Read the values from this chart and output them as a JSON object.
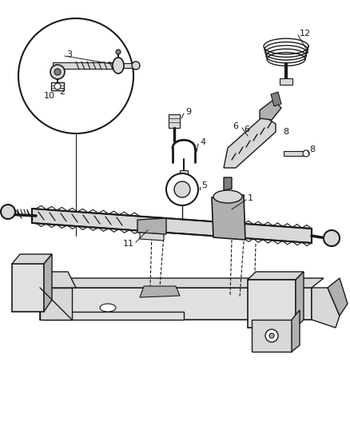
{
  "background_color": "#ffffff",
  "fig_width": 4.38,
  "fig_height": 5.33,
  "dpi": 100,
  "line_color": "#1a1a1a",
  "light_gray": "#d8d8d8",
  "mid_gray": "#b0b0b0",
  "dark_gray": "#808080"
}
